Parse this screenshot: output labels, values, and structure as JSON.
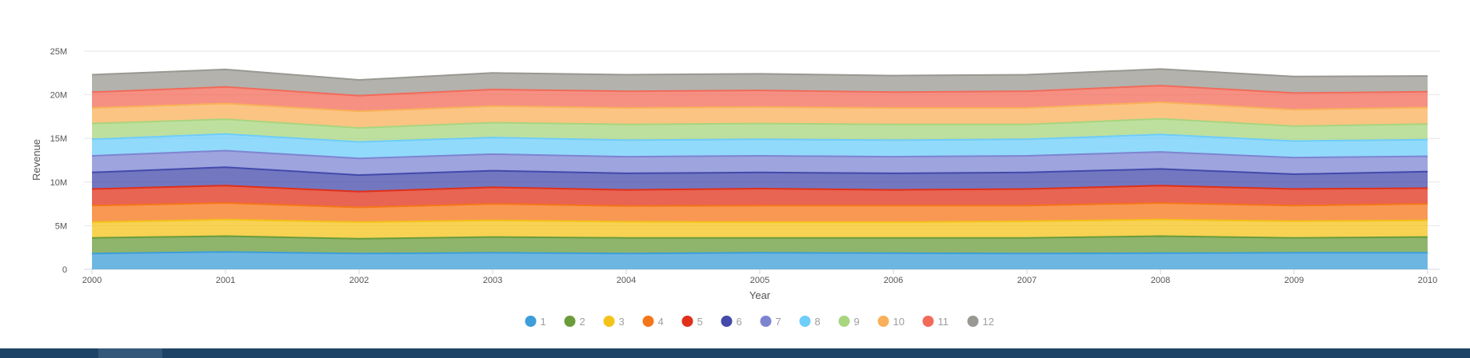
{
  "chart_data": {
    "type": "area",
    "stacked": true,
    "xlabel": "Year",
    "ylabel": "Revenue",
    "x": [
      2000,
      2001,
      2002,
      2003,
      2004,
      2005,
      2006,
      2007,
      2008,
      2009,
      2010
    ],
    "ylim": [
      0,
      25000000
    ],
    "yticks": [
      0,
      5000000,
      10000000,
      15000000,
      20000000,
      25000000
    ],
    "ytick_labels": [
      "0",
      "5M",
      "10M",
      "15M",
      "20M",
      "25M"
    ],
    "grid": true,
    "legend_position": "bottom",
    "series": [
      {
        "name": "1",
        "color": "#3d9ed8",
        "values": [
          1800000,
          2000000,
          1800000,
          1900000,
          1800000,
          1900000,
          1850000,
          1800000,
          1850000,
          1900000,
          1900000
        ]
      },
      {
        "name": "2",
        "color": "#6a9c3b",
        "values": [
          1800000,
          1800000,
          1700000,
          1800000,
          1800000,
          1700000,
          1750000,
          1800000,
          1950000,
          1700000,
          1800000
        ]
      },
      {
        "name": "3",
        "color": "#f4c31a",
        "values": [
          1800000,
          1900000,
          1900000,
          1900000,
          1850000,
          1800000,
          1800000,
          1900000,
          1900000,
          1900000,
          1900000
        ]
      },
      {
        "name": "4",
        "color": "#f5761a",
        "values": [
          1900000,
          1900000,
          1700000,
          1900000,
          1800000,
          1900000,
          1900000,
          1800000,
          1900000,
          1800000,
          1900000
        ]
      },
      {
        "name": "5",
        "color": "#e0301a",
        "values": [
          1900000,
          2000000,
          1800000,
          1900000,
          1850000,
          1950000,
          1800000,
          1900000,
          2000000,
          1900000,
          1800000
        ]
      },
      {
        "name": "6",
        "color": "#434aab",
        "values": [
          1900000,
          2100000,
          1900000,
          1900000,
          1900000,
          1850000,
          1900000,
          1900000,
          1900000,
          1700000,
          1900000
        ]
      },
      {
        "name": "7",
        "color": "#7d85d1",
        "values": [
          1900000,
          1900000,
          1900000,
          1900000,
          1900000,
          1900000,
          1900000,
          1900000,
          1950000,
          1900000,
          1750000
        ]
      },
      {
        "name": "8",
        "color": "#6ecdf9",
        "values": [
          1900000,
          1900000,
          1900000,
          1900000,
          1900000,
          1900000,
          1900000,
          1900000,
          2000000,
          1900000,
          1900000
        ]
      },
      {
        "name": "9",
        "color": "#a8d57f",
        "values": [
          1800000,
          1700000,
          1600000,
          1700000,
          1800000,
          1800000,
          1800000,
          1700000,
          1800000,
          1700000,
          1800000
        ]
      },
      {
        "name": "10",
        "color": "#f9b05a",
        "values": [
          1800000,
          1800000,
          1900000,
          1900000,
          1900000,
          1900000,
          1900000,
          1900000,
          1900000,
          1900000,
          1900000
        ]
      },
      {
        "name": "11",
        "color": "#f26b5a",
        "values": [
          1800000,
          1900000,
          1800000,
          1900000,
          1900000,
          1900000,
          1800000,
          1900000,
          1900000,
          1900000,
          1800000
        ]
      },
      {
        "name": "12",
        "color": "#999892",
        "values": [
          2000000,
          2000000,
          1800000,
          1900000,
          1900000,
          1900000,
          1900000,
          1900000,
          1900000,
          1900000,
          1800000
        ]
      }
    ]
  }
}
